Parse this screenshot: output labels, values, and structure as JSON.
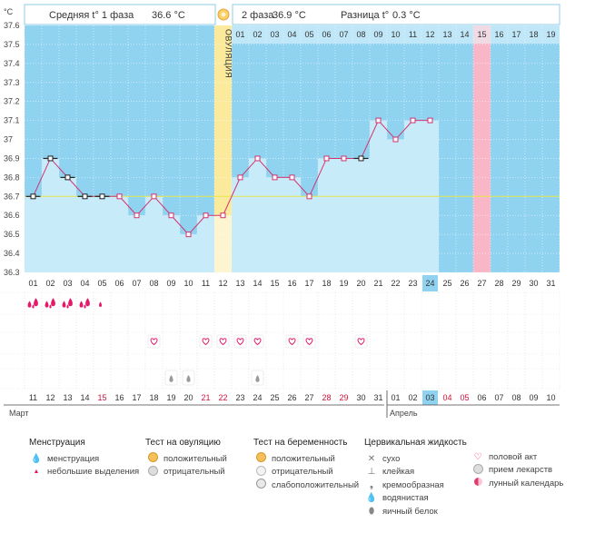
{
  "header": {
    "phase1_label": "Средняя t° 1 фаза",
    "phase1_value": "36.6 °C",
    "phase2_label": "2 фаза",
    "phase2_value": "36.9 °C",
    "diff_label": "Разница t°",
    "diff_value": "0.3 °C",
    "ovulation_label": "ОВУЛЯЦИЯ"
  },
  "chart_data": {
    "type": "line",
    "unit_label": "°C",
    "ylim": [
      36.3,
      37.6
    ],
    "y_ticks": [
      "37.6",
      "37.5",
      "37.4",
      "37.3",
      "37.2",
      "37.1",
      "37",
      "36.9",
      "36.8",
      "36.7",
      "36.6",
      "36.5",
      "36.4",
      "36.3"
    ],
    "cycle_days": [
      "01",
      "02",
      "03",
      "04",
      "05",
      "06",
      "07",
      "08",
      "09",
      "10",
      "11",
      "12",
      "13",
      "14",
      "15",
      "16",
      "17",
      "18",
      "19",
      "20",
      "21",
      "22",
      "23",
      "24",
      "25",
      "26",
      "27",
      "28",
      "29",
      "30",
      "31"
    ],
    "post_ovulation_days": [
      "01",
      "02",
      "03",
      "04",
      "05",
      "06",
      "07",
      "08",
      "09",
      "10",
      "11",
      "12",
      "13",
      "14",
      "15",
      "16",
      "17",
      "18",
      "19"
    ],
    "temperatures": [
      36.7,
      36.9,
      36.8,
      36.7,
      36.7,
      36.7,
      36.6,
      36.7,
      36.6,
      36.5,
      36.6,
      36.6,
      36.8,
      36.9,
      36.8,
      36.8,
      36.7,
      36.9,
      36.9,
      36.9,
      37.1,
      37.0,
      37.1,
      37.1
    ],
    "marker_styles": [
      "black",
      "black",
      "black",
      "black",
      "black",
      "pink",
      "pink",
      "pink",
      "pink",
      "pink",
      "pink",
      "pink",
      "pink",
      "pink",
      "pink",
      "pink",
      "pink",
      "pink",
      "pink",
      "black",
      "pink",
      "pink",
      "pink",
      "pink"
    ],
    "coverline": 36.7,
    "ovulation_day_index": 11,
    "current_day_index": 23,
    "expected_period_day_index": 26,
    "menstruation": [
      3,
      4,
      5,
      4,
      1
    ],
    "sex_days": [
      7,
      10,
      11,
      12,
      13,
      15,
      16,
      19
    ],
    "watery_days": [
      8,
      9,
      13
    ],
    "calendar_days": [
      "11",
      "12",
      "13",
      "14",
      "15",
      "16",
      "17",
      "18",
      "19",
      "20",
      "21",
      "22",
      "23",
      "24",
      "25",
      "26",
      "27",
      "28",
      "29",
      "30",
      "31",
      "01",
      "02",
      "03",
      "04",
      "05",
      "06",
      "07",
      "08",
      "09",
      "10"
    ],
    "weekend_indices": [
      4,
      10,
      11,
      17,
      18,
      24,
      25
    ],
    "month_start": "Март",
    "month_next": "Апрель",
    "next_month_index": 21
  },
  "legend": {
    "menstruation": {
      "title": "Менструация",
      "items": [
        "менструация",
        "небольшие выделения"
      ]
    },
    "ovulation_test": {
      "title": "Тест на овуляцию",
      "items": [
        "положительный",
        "отрицательный"
      ]
    },
    "pregnancy_test": {
      "title": "Тест на беременность",
      "items": [
        "положительный",
        "отрицательный",
        "слабоположительный"
      ]
    },
    "cervical": {
      "title": "Цервикальная жидкость",
      "items": [
        "сухо",
        "клейкая",
        "кремообразная",
        "водянистая",
        "яичный белок"
      ]
    },
    "other": {
      "items": [
        "половой акт",
        "прием лекарств",
        "лунный календарь"
      ]
    }
  },
  "colors": {
    "sky": "#8fd3f0",
    "bar": "#c8ebfa",
    "bar_border": "#9ccfe8",
    "ovulation": "#fbea9c",
    "ovulation_light": "#fdf5cf",
    "period": "#f9b6c6",
    "line": "#d2336e",
    "coverline": "#e6e64a",
    "accent": "#e5196a"
  }
}
